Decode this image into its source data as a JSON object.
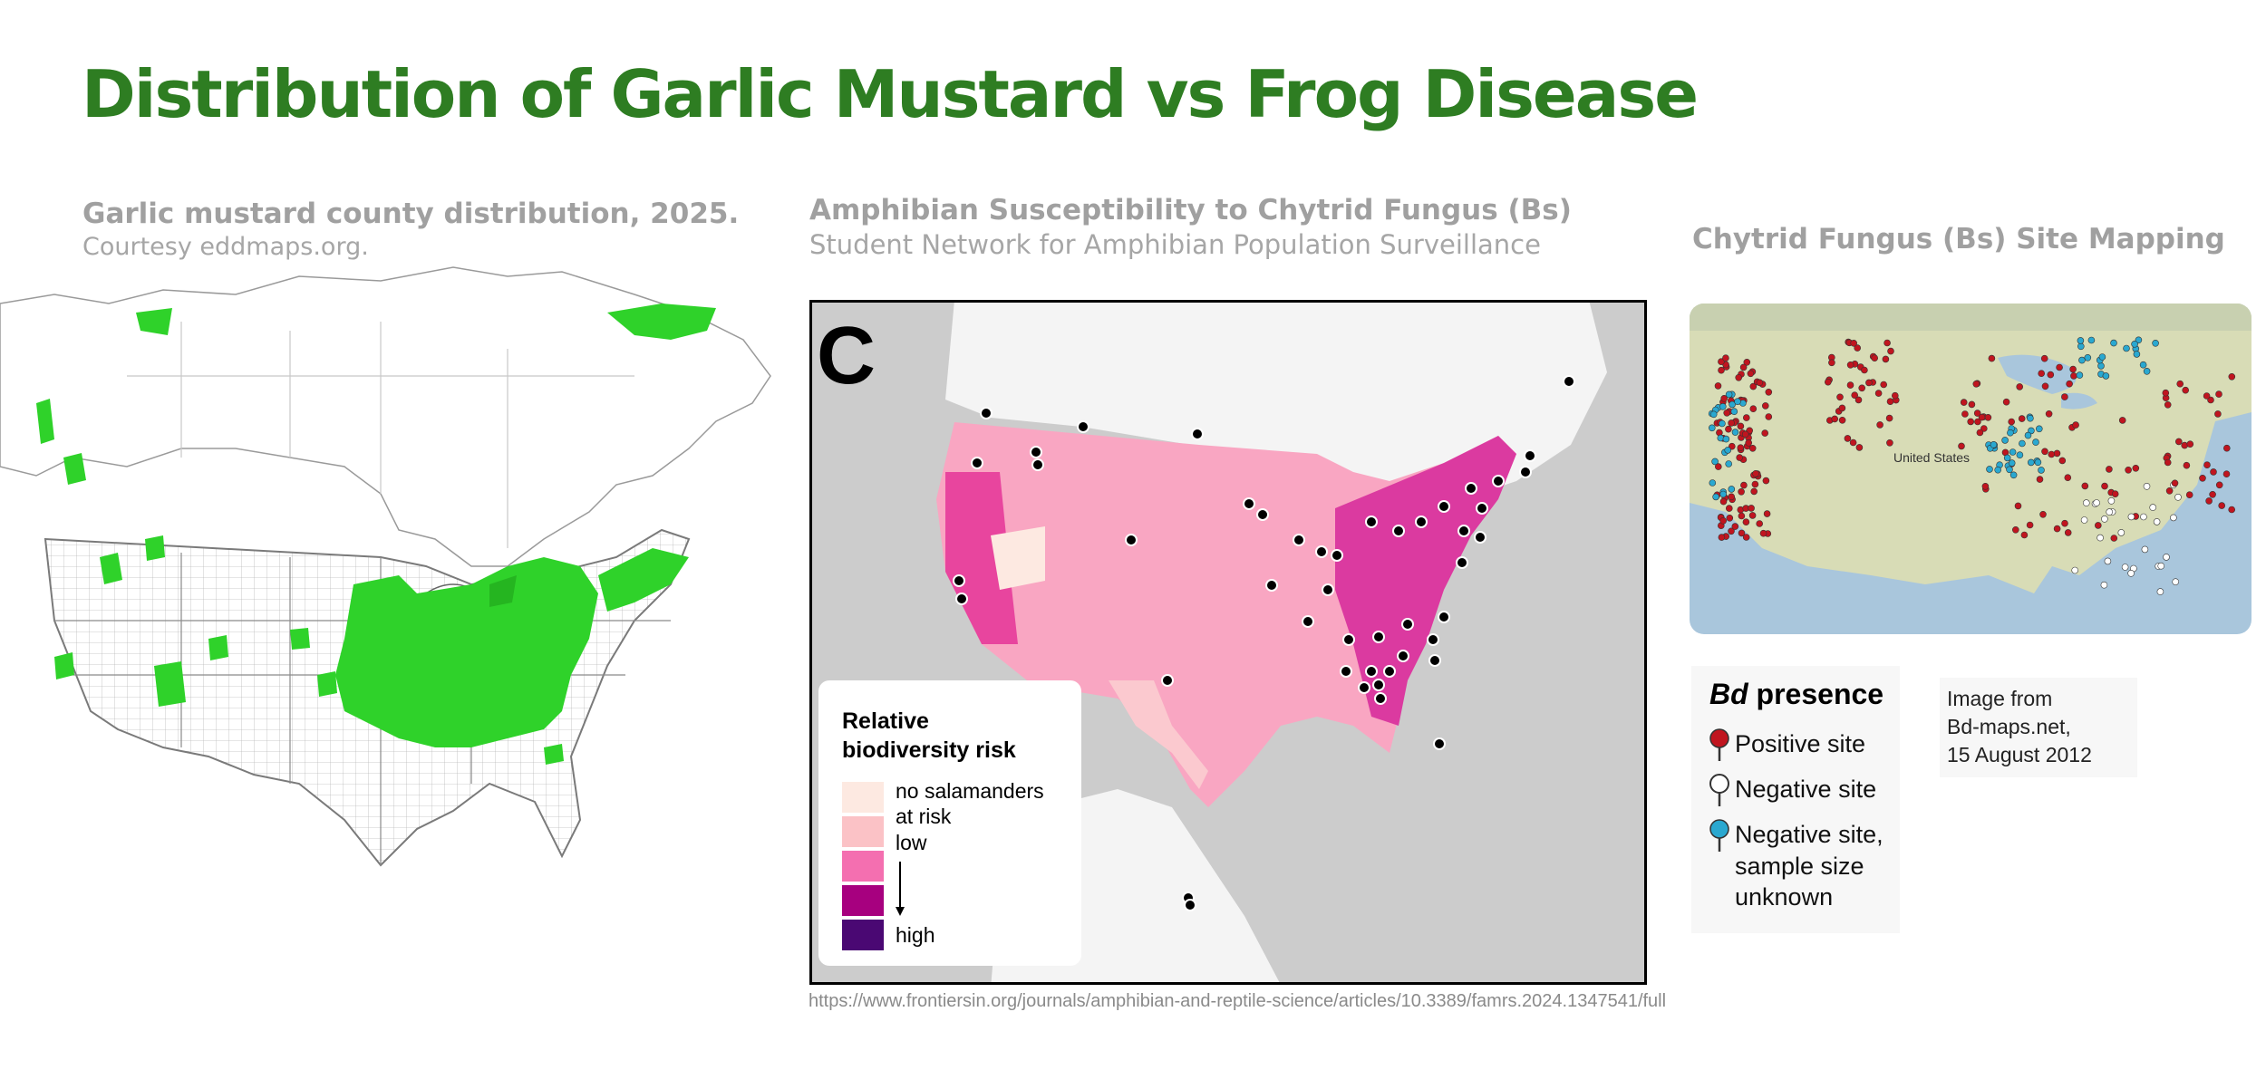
{
  "title": "Distribution of Garlic Mustard vs Frog Disease",
  "panel_left": {
    "heading": "Garlic mustard county distribution, 2025.",
    "credit": "Courtesy eddmaps.org."
  },
  "panel_middle": {
    "heading": "Amphibian Susceptibility to Chytrid Fungus (Bs)",
    "subheading": "Student Network for Amphibian Population Surveillance",
    "panel_letter": "C",
    "legend": {
      "title_line1": "Relative",
      "title_line2": "biodiversity risk",
      "items": [
        {
          "label_line1": "no salamanders",
          "label_line2": "at risk",
          "color": "#fde9e1"
        },
        {
          "label_line1": "low",
          "label_line2": "",
          "color": "#fbc2c6"
        },
        {
          "label_line1": "",
          "label_line2": "",
          "color": "#f46fb0"
        },
        {
          "label_line1": "",
          "label_line2": "",
          "color": "#a7007f"
        },
        {
          "label_line1": "high",
          "label_line2": "",
          "color": "#4a0873"
        }
      ]
    },
    "source_url": "https://www.frontiersin.org/journals/amphibian-and-reptile-science/articles/10.3389/famrs.2024.1347541/full"
  },
  "panel_right": {
    "heading": "Chytrid Fungus (Bs) Site Mapping",
    "map_label": "United States",
    "legend": {
      "title_italic": "Bd",
      "title_rest": " presence",
      "items": [
        {
          "line1": "Positive site",
          "line2": "",
          "line3": "",
          "color": "#c0151f"
        },
        {
          "line1": "Negative site",
          "line2": "",
          "line3": "",
          "color": "#ffffff"
        },
        {
          "line1": "Negative site,",
          "line2": "sample size",
          "line3": "unknown",
          "color": "#2aa8d0"
        }
      ]
    },
    "attribution": {
      "line1": "Image from",
      "line2": "Bd-maps.net,",
      "line3": "15 August 2012"
    }
  },
  "colors": {
    "title_green": "#2e7d22",
    "mustard_green": "#2fd22a",
    "caption_gray": "#a0a0a0"
  }
}
